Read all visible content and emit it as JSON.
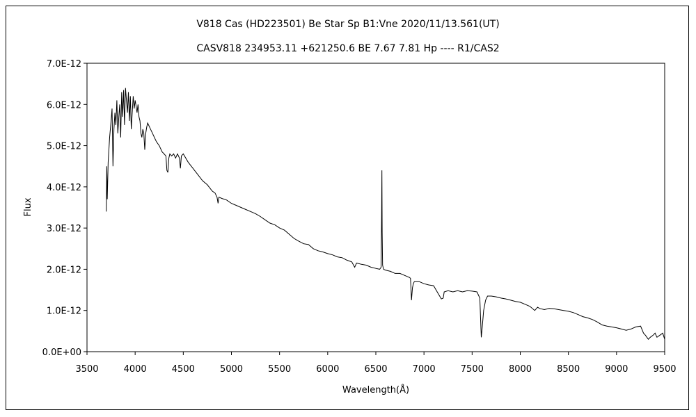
{
  "chart_data": {
    "type": "line",
    "title": "V818 Cas (HD223501)    Be Star    Sp B1:Vne    2020/11/13.561(UT)",
    "subtitle": "CASV818 234953.11 +621250.6 BE 7.67 7.81 Hp ---- R1/CAS2",
    "xlabel": "Wavelength(Å)",
    "ylabel": "Flux",
    "xlim": [
      3500,
      9500
    ],
    "ylim": [
      0,
      7e-12
    ],
    "x_ticks": [
      "3500",
      "4000",
      "4500",
      "5000",
      "5500",
      "6000",
      "6500",
      "7000",
      "7500",
      "8000",
      "8500",
      "9000",
      "9500"
    ],
    "y_ticks": [
      "0.0E+00",
      "1.0E-12",
      "2.0E-12",
      "3.0E-12",
      "4.0E-12",
      "5.0E-12",
      "6.0E-12",
      "7.0E-12"
    ],
    "grid": false,
    "legend": "none",
    "line_color": "#000000",
    "series": [
      {
        "x": [
          3700,
          3705,
          3710,
          3720,
          3735,
          3750,
          3760,
          3770,
          3780,
          3790,
          3800,
          3810,
          3820,
          3830,
          3840,
          3850,
          3860,
          3870,
          3880,
          3890,
          3900,
          3910,
          3920,
          3930,
          3940,
          3950,
          3960,
          3970,
          3980,
          3990,
          4000,
          4010,
          4020,
          4030,
          4040,
          4050,
          4060,
          4070,
          4080,
          4090,
          4100,
          4110,
          4120,
          4130,
          4140,
          4150,
          4160,
          4180,
          4200,
          4220,
          4250,
          4280,
          4300,
          4320,
          4330,
          4340,
          4350,
          4360,
          4380,
          4400,
          4420,
          4440,
          4460,
          4470,
          4480,
          4500,
          4550,
          4600,
          4650,
          4700,
          4750,
          4800,
          4830,
          4850,
          4861,
          4870,
          4900,
          4950,
          5000,
          5050,
          5100,
          5150,
          5200,
          5250,
          5300,
          5350,
          5400,
          5450,
          5500,
          5550,
          5600,
          5650,
          5700,
          5750,
          5800,
          5850,
          5900,
          5950,
          6000,
          6050,
          6100,
          6150,
          6200,
          6250,
          6280,
          6300,
          6350,
          6400,
          6450,
          6500,
          6540,
          6555,
          6560,
          6563,
          6566,
          6570,
          6580,
          6600,
          6650,
          6700,
          6750,
          6800,
          6850,
          6860,
          6870,
          6880,
          6890,
          6900,
          6950,
          7000,
          7050,
          7100,
          7150,
          7180,
          7200,
          7210,
          7250,
          7300,
          7350,
          7400,
          7450,
          7500,
          7550,
          7580,
          7595,
          7605,
          7620,
          7640,
          7660,
          7700,
          7750,
          7800,
          7850,
          7900,
          7950,
          8000,
          8050,
          8100,
          8150,
          8180,
          8200,
          8250,
          8300,
          8350,
          8400,
          8450,
          8500,
          8550,
          8600,
          8650,
          8700,
          8750,
          8800,
          8850,
          8900,
          8950,
          9000,
          9050,
          9100,
          9150,
          9200,
          9250,
          9280,
          9300,
          9330,
          9350,
          9380,
          9400,
          9420,
          9450,
          9480,
          9500
        ],
        "y": [
          3.4e-12,
          4.5e-12,
          3.7e-12,
          4.6e-12,
          5.2e-12,
          5.6e-12,
          5.9e-12,
          4.5e-12,
          5.4e-12,
          5.8e-12,
          5.5e-12,
          6.1e-12,
          5.3e-12,
          5.7e-12,
          6e-12,
          5.2e-12,
          6.3e-12,
          5.7e-12,
          6.35e-12,
          5.5e-12,
          6.4e-12,
          6.1e-12,
          5.8e-12,
          6.3e-12,
          5.6e-12,
          6.2e-12,
          5.4e-12,
          5.8e-12,
          6.2e-12,
          5.9e-12,
          6.1e-12,
          5.95e-12,
          5.8e-12,
          6e-12,
          5.7e-12,
          5.6e-12,
          5.3e-12,
          5.2e-12,
          5.4e-12,
          5.3e-12,
          4.9e-12,
          5.3e-12,
          5.45e-12,
          5.55e-12,
          5.5e-12,
          5.45e-12,
          5.4e-12,
          5.3e-12,
          5.2e-12,
          5.1e-12,
          5e-12,
          4.85e-12,
          4.8e-12,
          4.75e-12,
          4.4e-12,
          4.35e-12,
          4.7e-12,
          4.8e-12,
          4.75e-12,
          4.8e-12,
          4.7e-12,
          4.8e-12,
          4.7e-12,
          4.45e-12,
          4.75e-12,
          4.8e-12,
          4.6e-12,
          4.45e-12,
          4.3e-12,
          4.15e-12,
          4.05e-12,
          3.9e-12,
          3.85e-12,
          3.75e-12,
          3.6e-12,
          3.75e-12,
          3.72e-12,
          3.68e-12,
          3.6e-12,
          3.55e-12,
          3.5e-12,
          3.45e-12,
          3.4e-12,
          3.35e-12,
          3.28e-12,
          3.2e-12,
          3.12e-12,
          3.08e-12,
          3e-12,
          2.95e-12,
          2.85e-12,
          2.75e-12,
          2.68e-12,
          2.62e-12,
          2.6e-12,
          2.5e-12,
          2.45e-12,
          2.42e-12,
          2.38e-12,
          2.35e-12,
          2.3e-12,
          2.28e-12,
          2.22e-12,
          2.18e-12,
          2.05e-12,
          2.15e-12,
          2.12e-12,
          2.1e-12,
          2.05e-12,
          2.02e-12,
          2e-12,
          2.05e-12,
          3.3e-12,
          4.4e-12,
          2.9e-12,
          2.1e-12,
          2e-12,
          1.98e-12,
          1.95e-12,
          1.9e-12,
          1.9e-12,
          1.85e-12,
          1.8e-12,
          1.78e-12,
          1.25e-12,
          1.55e-12,
          1.65e-12,
          1.7e-12,
          1.7e-12,
          1.65e-12,
          1.62e-12,
          1.6e-12,
          1.4e-12,
          1.28e-12,
          1.3e-12,
          1.45e-12,
          1.48e-12,
          1.45e-12,
          1.48e-12,
          1.45e-12,
          1.48e-12,
          1.47e-12,
          1.45e-12,
          1.3e-12,
          3.5e-13,
          6e-13,
          1e-12,
          1.25e-12,
          1.35e-12,
          1.35e-12,
          1.33e-12,
          1.3e-12,
          1.28e-12,
          1.25e-12,
          1.22e-12,
          1.2e-12,
          1.15e-12,
          1.1e-12,
          1e-12,
          1.08e-12,
          1.05e-12,
          1.02e-12,
          1.05e-12,
          1.04e-12,
          1.02e-12,
          1e-12,
          9.8e-13,
          9.5e-13,
          9e-13,
          8.5e-13,
          8.2e-13,
          7.8e-13,
          7.2e-13,
          6.5e-13,
          6.2e-13,
          6e-13,
          5.8e-13,
          5.5e-13,
          5.2e-13,
          5.5e-13,
          6e-13,
          6.2e-13,
          4.5e-13,
          4e-13,
          3e-13,
          3.5e-13,
          4e-13,
          4.5e-13,
          3.5e-13,
          4e-13,
          4.5e-13,
          3e-13
        ]
      }
    ]
  }
}
